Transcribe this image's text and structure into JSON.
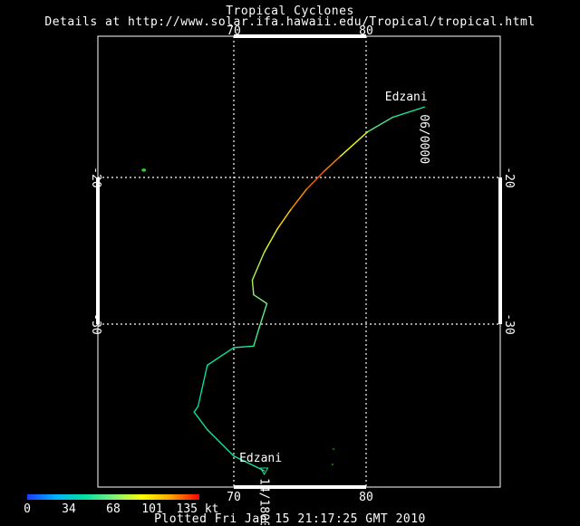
{
  "header": {
    "title": "Tropical Cyclones",
    "subtitle": "Details at http://www.solar.ifa.hawaii.edu/Tropical/tropical.html"
  },
  "axes": {
    "lon_labels": [
      "70",
      "80"
    ],
    "lat_labels": [
      "-20",
      "-30"
    ]
  },
  "storm": {
    "name": "Edzani",
    "start_label": "06/0000",
    "end_label": "14/1800",
    "track": [
      {
        "lon": 84.4,
        "lat": -15.2,
        "kt": 45
      },
      {
        "lon": 82.0,
        "lat": -15.9,
        "kt": 55
      },
      {
        "lon": 80.1,
        "lat": -16.9,
        "kt": 65
      },
      {
        "lon": 78.0,
        "lat": -18.6,
        "kt": 110
      },
      {
        "lon": 76.8,
        "lat": -19.6,
        "kt": 125
      },
      {
        "lon": 75.5,
        "lat": -20.8,
        "kt": 120
      },
      {
        "lon": 74.3,
        "lat": -22.2,
        "kt": 110
      },
      {
        "lon": 73.3,
        "lat": -23.5,
        "kt": 90
      },
      {
        "lon": 72.3,
        "lat": -25.1,
        "kt": 80
      },
      {
        "lon": 71.4,
        "lat": -27.0,
        "kt": 75
      },
      {
        "lon": 71.5,
        "lat": -28.0,
        "kt": 72
      },
      {
        "lon": 72.5,
        "lat": -28.6,
        "kt": 65
      },
      {
        "lon": 71.9,
        "lat": -30.3,
        "kt": 60
      },
      {
        "lon": 71.5,
        "lat": -31.5,
        "kt": 55
      },
      {
        "lon": 70.0,
        "lat": -31.6,
        "kt": 50
      },
      {
        "lon": 68.0,
        "lat": -32.8,
        "kt": 45
      },
      {
        "lon": 67.3,
        "lat": -35.6,
        "kt": 45
      },
      {
        "lon": 67.0,
        "lat": -36.0,
        "kt": 45
      },
      {
        "lon": 68.0,
        "lat": -37.2,
        "kt": 50
      },
      {
        "lon": 70.0,
        "lat": -39.0,
        "kt": 50
      },
      {
        "lon": 72.3,
        "lat": -40.0,
        "kt": 50
      }
    ],
    "colors": {
      "track_low": "#22dcae",
      "track_high": "#ff2a00"
    }
  },
  "colorbar": {
    "ticks": [
      "0",
      "34",
      "68",
      "101",
      "135 kt"
    ],
    "stops": [
      "#1a3cff",
      "#00b4ff",
      "#00e0a0",
      "#7cf080",
      "#ffff00",
      "#ffa500",
      "#ff0000"
    ]
  },
  "footer": {
    "text": "Plotted Fri Jan 15 21:17:25 GMT 2010"
  },
  "other_systems": [
    {
      "lon": 63.2,
      "lat": -19.5,
      "color": "#33cc33"
    }
  ]
}
